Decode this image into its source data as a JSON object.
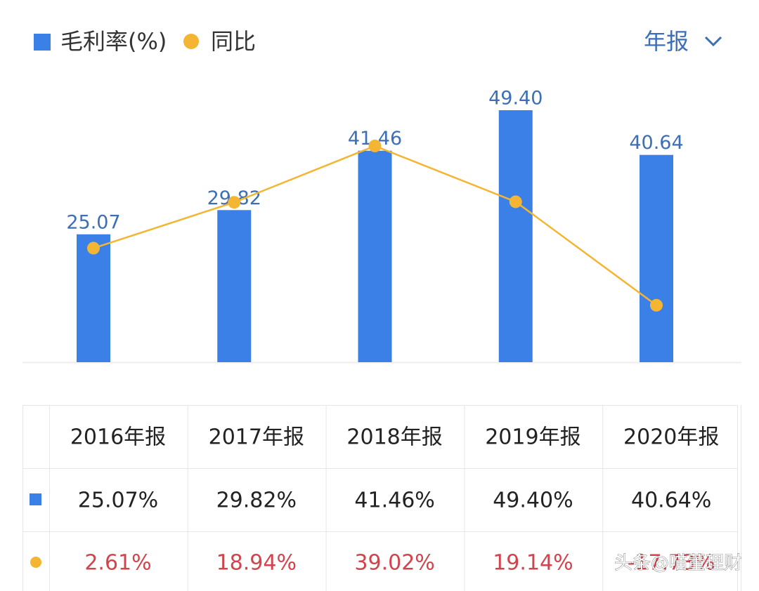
{
  "chart_data": {
    "type": "bar",
    "categories": [
      "2016年报",
      "2017年报",
      "2018年报",
      "2019年报",
      "2020年报"
    ],
    "series": [
      {
        "name": "毛利率(%)",
        "color": "#3a80e6",
        "values": [
          25.07,
          29.82,
          41.46,
          49.4,
          40.64
        ],
        "value_labels": [
          "25.07",
          "29.82",
          "41.46",
          "49.40",
          "40.64"
        ]
      },
      {
        "name": "同比",
        "type": "line",
        "axis": "y2",
        "color": "#f4b533",
        "values": [
          2.61,
          18.94,
          39.02,
          19.14,
          -17.73
        ]
      }
    ],
    "ylim": [
      0,
      60
    ],
    "y2lim": [
      -38,
      71
    ],
    "period_selector": "年报"
  },
  "table": {
    "rows": [
      [
        "25.07%",
        "29.82%",
        "41.46%",
        "49.40%",
        "40.64%"
      ],
      [
        "2.61%",
        "18.94%",
        "39.02%",
        "19.14%",
        "-17.73%"
      ]
    ]
  },
  "watermark": "头条@喵董理财"
}
